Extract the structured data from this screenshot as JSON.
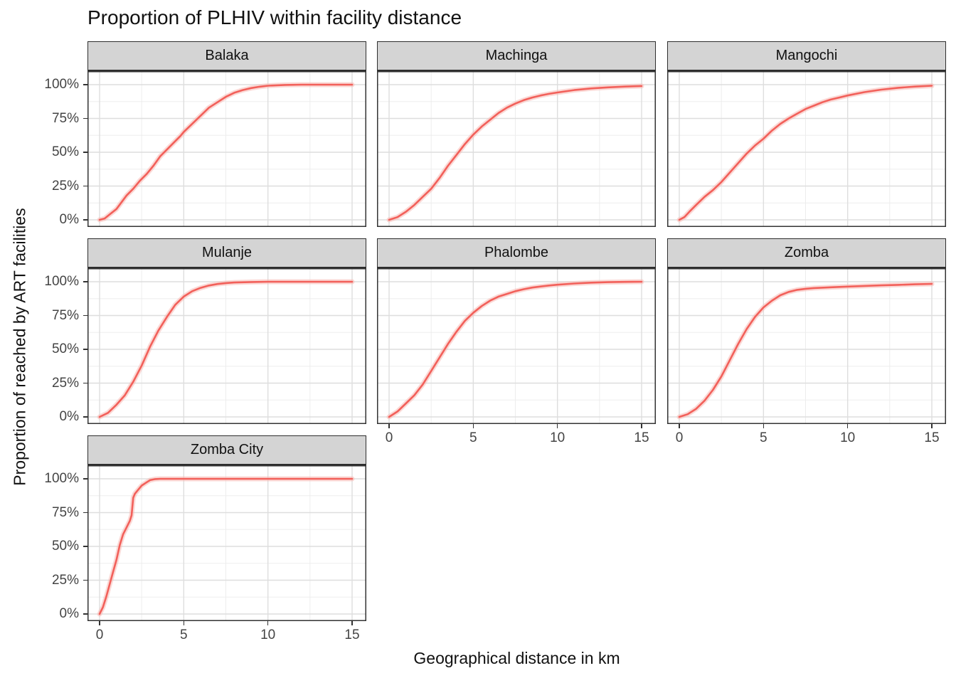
{
  "title": "Proportion of PLHIV within facility distance",
  "x_axis_title": "Geographical distance in km",
  "y_axis_title": "Proportion of reached by ART facilities",
  "colors": {
    "line": "#f2605a",
    "ribbon": "#f8b9b5",
    "strip_background": "#d4d4d4",
    "strip_border": "#2e2e2e",
    "panel_border": "#333333",
    "grid_major": "#dedede",
    "grid_minor": "#ededed",
    "tick_text": "#444444",
    "background": "#ffffff"
  },
  "chart_data": {
    "type": "line",
    "title": "Proportion of PLHIV within facility distance",
    "xlabel": "Geographical distance in km",
    "ylabel": "Proportion of reached by ART facilities",
    "xlim": [
      0,
      15
    ],
    "ylim_pct": [
      0,
      100
    ],
    "grid": "on",
    "facet_grid": {
      "rows": 3,
      "cols": 3
    },
    "x_ticks": [
      {
        "value": 0,
        "label": "0"
      },
      {
        "value": 5,
        "label": "5"
      },
      {
        "value": 10,
        "label": "10"
      },
      {
        "value": 15,
        "label": "15"
      }
    ],
    "x_minor_ticks": [
      2.5,
      7.5,
      12.5
    ],
    "y_ticks": [
      {
        "value": 0,
        "label": "0%"
      },
      {
        "value": 25,
        "label": "25%"
      },
      {
        "value": 50,
        "label": "50%"
      },
      {
        "value": 75,
        "label": "75%"
      },
      {
        "value": 100,
        "label": "100%"
      }
    ],
    "y_minor_ticks": [
      12.5,
      37.5,
      62.5,
      87.5
    ],
    "facets": [
      {
        "name": "Balaka",
        "row": 0,
        "col": 0,
        "show_x_axis": false,
        "show_y_axis": true,
        "points": [
          [
            0,
            0
          ],
          [
            0.3,
            1
          ],
          [
            0.6,
            4
          ],
          [
            1,
            8
          ],
          [
            1.3,
            13
          ],
          [
            1.6,
            18
          ],
          [
            2,
            23
          ],
          [
            2.4,
            29
          ],
          [
            2.8,
            34
          ],
          [
            3.2,
            40
          ],
          [
            3.6,
            47
          ],
          [
            4,
            52
          ],
          [
            4.4,
            57
          ],
          [
            4.8,
            62
          ],
          [
            5,
            65
          ],
          [
            5.5,
            71
          ],
          [
            6,
            77
          ],
          [
            6.5,
            83
          ],
          [
            7,
            87
          ],
          [
            7.5,
            91
          ],
          [
            8,
            94
          ],
          [
            8.5,
            96
          ],
          [
            9,
            97.5
          ],
          [
            9.5,
            98.5
          ],
          [
            10,
            99.2
          ],
          [
            11,
            99.8
          ],
          [
            12,
            100
          ],
          [
            13,
            100
          ],
          [
            14,
            100
          ],
          [
            15,
            100
          ]
        ]
      },
      {
        "name": "Machinga",
        "row": 0,
        "col": 1,
        "show_x_axis": false,
        "show_y_axis": false,
        "points": [
          [
            0,
            0
          ],
          [
            0.5,
            2
          ],
          [
            1,
            6
          ],
          [
            1.5,
            11
          ],
          [
            2,
            17
          ],
          [
            2.5,
            23
          ],
          [
            3,
            31
          ],
          [
            3.5,
            40
          ],
          [
            4,
            48
          ],
          [
            4.5,
            56
          ],
          [
            5,
            63
          ],
          [
            5.5,
            69
          ],
          [
            6,
            74
          ],
          [
            6.5,
            79
          ],
          [
            7,
            83
          ],
          [
            7.5,
            86
          ],
          [
            8,
            88.5
          ],
          [
            8.5,
            90.5
          ],
          [
            9,
            92
          ],
          [
            9.5,
            93.2
          ],
          [
            10,
            94.2
          ],
          [
            11,
            96
          ],
          [
            12,
            97.2
          ],
          [
            13,
            98
          ],
          [
            14,
            98.6
          ],
          [
            15,
            99
          ]
        ]
      },
      {
        "name": "Mangochi",
        "row": 0,
        "col": 2,
        "show_x_axis": false,
        "show_y_axis": false,
        "points": [
          [
            0,
            0
          ],
          [
            0.3,
            2
          ],
          [
            0.6,
            6
          ],
          [
            1,
            11
          ],
          [
            1.5,
            17
          ],
          [
            2,
            22
          ],
          [
            2.5,
            28
          ],
          [
            3,
            35
          ],
          [
            3.5,
            42
          ],
          [
            4,
            49
          ],
          [
            4.5,
            55
          ],
          [
            5,
            60
          ],
          [
            5.5,
            66
          ],
          [
            6,
            71
          ],
          [
            6.5,
            75
          ],
          [
            7,
            78.5
          ],
          [
            7.5,
            82
          ],
          [
            8,
            84.5
          ],
          [
            8.5,
            87
          ],
          [
            9,
            89
          ],
          [
            9.5,
            90.5
          ],
          [
            10,
            92
          ],
          [
            11,
            94.5
          ],
          [
            12,
            96.3
          ],
          [
            13,
            97.7
          ],
          [
            14,
            98.6
          ],
          [
            15,
            99.2
          ]
        ]
      },
      {
        "name": "Mulanje",
        "row": 1,
        "col": 0,
        "show_x_axis": false,
        "show_y_axis": true,
        "points": [
          [
            0,
            0
          ],
          [
            0.5,
            3
          ],
          [
            1,
            9
          ],
          [
            1.5,
            16
          ],
          [
            2,
            26
          ],
          [
            2.5,
            38
          ],
          [
            3,
            52
          ],
          [
            3.5,
            64
          ],
          [
            4,
            74
          ],
          [
            4.5,
            83
          ],
          [
            5,
            89
          ],
          [
            5.5,
            93
          ],
          [
            6,
            95.5
          ],
          [
            6.5,
            97.2
          ],
          [
            7,
            98.3
          ],
          [
            7.5,
            99
          ],
          [
            8,
            99.4
          ],
          [
            9,
            99.8
          ],
          [
            10,
            100
          ],
          [
            12,
            100
          ],
          [
            15,
            100
          ]
        ]
      },
      {
        "name": "Phalombe",
        "row": 1,
        "col": 1,
        "show_x_axis": true,
        "show_y_axis": false,
        "points": [
          [
            0,
            0
          ],
          [
            0.5,
            4
          ],
          [
            1,
            10
          ],
          [
            1.5,
            16
          ],
          [
            2,
            24
          ],
          [
            2.5,
            34
          ],
          [
            3,
            44
          ],
          [
            3.5,
            54
          ],
          [
            4,
            63
          ],
          [
            4.5,
            71
          ],
          [
            5,
            77
          ],
          [
            5.5,
            82
          ],
          [
            6,
            86
          ],
          [
            6.5,
            89
          ],
          [
            7,
            91
          ],
          [
            7.5,
            93
          ],
          [
            8,
            94.5
          ],
          [
            8.5,
            95.7
          ],
          [
            9,
            96.5
          ],
          [
            9.5,
            97.2
          ],
          [
            10,
            97.8
          ],
          [
            11,
            98.7
          ],
          [
            12,
            99.3
          ],
          [
            13,
            99.7
          ],
          [
            14,
            99.9
          ],
          [
            15,
            100
          ]
        ]
      },
      {
        "name": "Zomba",
        "row": 1,
        "col": 2,
        "show_x_axis": true,
        "show_y_axis": false,
        "points": [
          [
            0,
            0
          ],
          [
            0.5,
            2
          ],
          [
            1,
            6
          ],
          [
            1.5,
            12
          ],
          [
            2,
            20
          ],
          [
            2.5,
            30
          ],
          [
            3,
            42
          ],
          [
            3.5,
            54
          ],
          [
            4,
            65
          ],
          [
            4.5,
            74
          ],
          [
            5,
            81
          ],
          [
            5.5,
            86
          ],
          [
            6,
            90
          ],
          [
            6.5,
            92.5
          ],
          [
            7,
            94
          ],
          [
            7.5,
            94.8
          ],
          [
            8,
            95.3
          ],
          [
            9,
            95.9
          ],
          [
            10,
            96.4
          ],
          [
            11,
            96.9
          ],
          [
            12,
            97.3
          ],
          [
            13,
            97.7
          ],
          [
            14,
            98.1
          ],
          [
            15,
            98.4
          ]
        ]
      },
      {
        "name": "Zomba City",
        "row": 2,
        "col": 0,
        "show_x_axis": true,
        "show_y_axis": true,
        "points": [
          [
            0,
            0
          ],
          [
            0.2,
            5
          ],
          [
            0.4,
            13
          ],
          [
            0.6,
            22
          ],
          [
            0.8,
            31
          ],
          [
            1,
            40
          ],
          [
            1.2,
            51
          ],
          [
            1.4,
            59
          ],
          [
            1.6,
            64
          ],
          [
            1.8,
            69
          ],
          [
            1.9,
            73
          ],
          [
            2,
            86
          ],
          [
            2.1,
            89
          ],
          [
            2.3,
            92
          ],
          [
            2.5,
            95
          ],
          [
            2.8,
            97.5
          ],
          [
            3,
            99
          ],
          [
            3.3,
            99.8
          ],
          [
            3.6,
            100
          ],
          [
            4,
            100
          ],
          [
            5,
            100
          ],
          [
            7,
            100
          ],
          [
            10,
            100
          ],
          [
            15,
            100
          ]
        ]
      }
    ]
  }
}
